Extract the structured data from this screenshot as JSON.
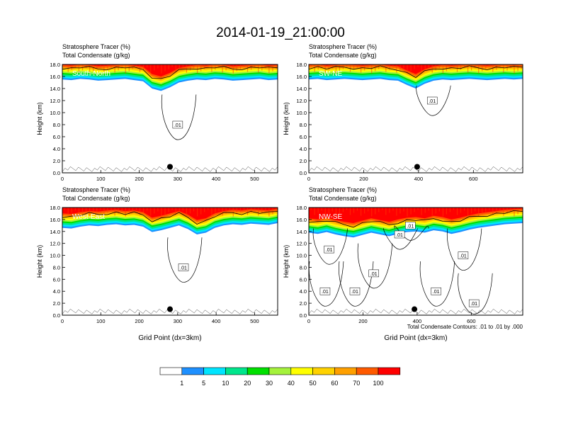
{
  "figure": {
    "title": "2014-01-19_21:00:00",
    "contour_note": "Total Condensate Contours: .01 to .01 by .000"
  },
  "colorbar": {
    "labels": [
      "1",
      "5",
      "10",
      "20",
      "30",
      "40",
      "50",
      "60",
      "70",
      "100"
    ],
    "colors": [
      "#ffffff",
      "#1e90ff",
      "#00e5ff",
      "#00e68c",
      "#00e000",
      "#a5f23c",
      "#ffff00",
      "#ffd200",
      "#ffa000",
      "#ff5a00",
      "#ff0000"
    ]
  },
  "chart_data": [
    {
      "type": "heatmap",
      "panel": "South-North",
      "subtitle_left": "Stratosphere Tracer   (%)",
      "subtitle_left2": "Total Condensate   (g/kg)",
      "ylabel": "Height (km)",
      "xlabel": "",
      "xlim": [
        0,
        560
      ],
      "ylim": [
        0,
        18
      ],
      "xticks": [
        0,
        100,
        200,
        300,
        400,
        500
      ],
      "yticks": [
        "0.0",
        "2.0",
        "4.0",
        "6.0",
        "8.0",
        "10.0",
        "12.0",
        "14.0",
        "16.0",
        "18.0"
      ],
      "tracer_base_km": [
        15.5,
        15.4,
        15.6,
        15.5,
        15.3,
        15.4,
        15.5,
        15.6,
        15.4,
        15.2,
        14.0,
        13.6,
        14.2,
        15.0,
        15.3,
        15.5,
        15.4,
        15.6,
        15.5,
        15.3,
        15.4,
        15.5,
        15.6,
        15.4,
        15.5
      ],
      "contour_labels": [
        {
          "x": 300,
          "y": 8.0,
          "text": ".01"
        }
      ],
      "marker": {
        "x": 280,
        "y": 1.0
      }
    },
    {
      "type": "heatmap",
      "panel": "SW-NE",
      "subtitle_left": "Stratosphere Tracer   (%)",
      "subtitle_left2": "Total Condensate   (g/kg)",
      "ylabel": "Height (km)",
      "xlabel": "",
      "xlim": [
        0,
        780
      ],
      "ylim": [
        0,
        18
      ],
      "xticks": [
        0,
        200,
        400,
        600
      ],
      "yticks": [
        "0.0",
        "2.0",
        "4.0",
        "6.0",
        "8.0",
        "10.0",
        "12.0",
        "14.0",
        "16.0",
        "18.0"
      ],
      "tracer_base_km": [
        15.5,
        15.6,
        15.4,
        15.5,
        15.6,
        15.5,
        15.4,
        15.5,
        15.6,
        15.4,
        15.3,
        14.6,
        14.0,
        14.8,
        15.3,
        15.5,
        15.4,
        15.5,
        15.6,
        15.5,
        15.4,
        15.5,
        15.6,
        15.5,
        15.6
      ],
      "contour_labels": [
        {
          "x": 450,
          "y": 12.0,
          "text": ".01"
        }
      ],
      "marker": {
        "x": 395,
        "y": 1.0
      }
    },
    {
      "type": "heatmap",
      "panel": "West-East",
      "subtitle_left": "Stratosphere Tracer   (%)",
      "subtitle_left2": "Total Condensate   (g/kg)",
      "ylabel": "Height (km)",
      "xlabel": "Grid Point (dx=3km)",
      "xlim": [
        0,
        560
      ],
      "ylim": [
        0,
        18
      ],
      "xticks": [
        0,
        100,
        200,
        300,
        400,
        500
      ],
      "yticks": [
        "0.0",
        "2.0",
        "4.0",
        "6.0",
        "8.0",
        "10.0",
        "12.0",
        "14.0",
        "16.0",
        "18.0"
      ],
      "tracer_base_km": [
        14.6,
        14.5,
        14.8,
        15.0,
        14.9,
        15.1,
        15.2,
        15.0,
        15.1,
        14.8,
        13.9,
        14.2,
        14.6,
        15.0,
        14.4,
        13.5,
        13.8,
        14.6,
        15.0,
        15.2,
        15.1,
        15.3,
        15.2,
        15.1,
        15.4
      ],
      "contour_labels": [
        {
          "x": 315,
          "y": 8.0,
          "text": ".01"
        }
      ],
      "marker": {
        "x": 280,
        "y": 1.0
      }
    },
    {
      "type": "heatmap",
      "panel": "NW-SE",
      "subtitle_left": "Stratosphere Tracer   (%)",
      "subtitle_left2": "Total Condensate   (g/kg)",
      "ylabel": "Height (km)",
      "xlabel": "Grid Point (dx=3km)",
      "xlim": [
        0,
        790
      ],
      "ylim": [
        0,
        18
      ],
      "xticks": [
        0,
        200,
        400,
        600
      ],
      "yticks": [
        "0.0",
        "2.0",
        "4.0",
        "6.0",
        "8.0",
        "10.0",
        "12.0",
        "14.0",
        "16.0",
        "18.0"
      ],
      "tracer_base_km": [
        13.8,
        13.6,
        13.9,
        13.5,
        13.2,
        13.0,
        13.4,
        13.8,
        13.5,
        13.2,
        13.6,
        13.9,
        14.0,
        13.8,
        14.2,
        14.0,
        13.6,
        13.9,
        14.3,
        14.6,
        14.8,
        15.0,
        15.2,
        15.3,
        15.4
      ],
      "contour_labels": [
        {
          "x": 75,
          "y": 11.0,
          "text": ".01"
        },
        {
          "x": 60,
          "y": 4.0,
          "text": ".01"
        },
        {
          "x": 170,
          "y": 4.0,
          "text": ".01"
        },
        {
          "x": 240,
          "y": 7.0,
          "text": ".01"
        },
        {
          "x": 335,
          "y": 13.5,
          "text": ".01"
        },
        {
          "x": 375,
          "y": 15.0,
          "text": ".01"
        },
        {
          "x": 470,
          "y": 4.0,
          "text": ".01"
        },
        {
          "x": 570,
          "y": 10.0,
          "text": ".01"
        },
        {
          "x": 610,
          "y": 2.0,
          "text": ".01"
        }
      ],
      "marker": {
        "x": 390,
        "y": 1.0
      }
    }
  ]
}
